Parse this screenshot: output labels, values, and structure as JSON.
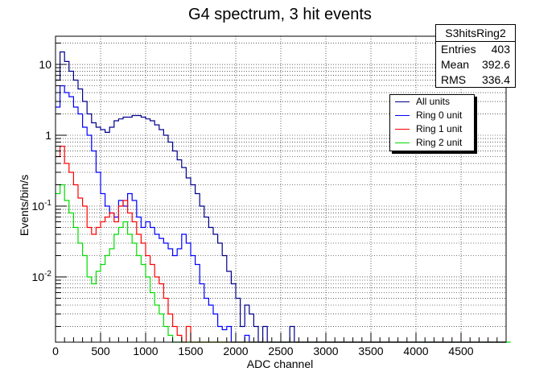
{
  "chart_data": {
    "type": "line",
    "title": "G4 spectrum, 3 hit events",
    "xlabel": "ADC channel",
    "ylabel": "Events/bin/s",
    "xlim": [
      0,
      5000
    ],
    "ylim": [
      0.0012,
      25
    ],
    "yscale": "log",
    "grid": true,
    "legend_position": "top-right",
    "x_ticks": [
      0,
      500,
      1000,
      1500,
      2000,
      2500,
      3000,
      3500,
      4000,
      4500
    ],
    "y_ticks": [
      {
        "value": 0.01,
        "label": "10^-2"
      },
      {
        "value": 0.1,
        "label": "10^-1"
      },
      {
        "value": 1,
        "label": "1"
      },
      {
        "value": 10,
        "label": "10"
      }
    ],
    "bin_width": 50,
    "series": [
      {
        "name": "All units",
        "color": "#00008b",
        "values": [
          6,
          15,
          11,
          8,
          6,
          4.5,
          3,
          2,
          1.5,
          1.3,
          1.2,
          1.1,
          1.3,
          1.6,
          1.7,
          1.8,
          1.8,
          1.9,
          1.9,
          1.8,
          1.7,
          1.6,
          1.4,
          1.2,
          1.0,
          0.8,
          0.6,
          0.45,
          0.35,
          0.25,
          0.2,
          0.15,
          0.1,
          0.07,
          0.05,
          0.04,
          0.03,
          0.02,
          0.012,
          0.008,
          0.005,
          0.002,
          0.004,
          0.003,
          0.002,
          0.001,
          0.002,
          0.001,
          0.0012,
          0.001,
          0.0012,
          0.001,
          0.002,
          0.001,
          0.001,
          0.001,
          0.001,
          0.001,
          0.001,
          0.001,
          0.001,
          0.001,
          0.001,
          0.001,
          0.001,
          0.001,
          0.001,
          0.001,
          0.001,
          0.001,
          0.001,
          0.001,
          0.001,
          0.001,
          0.001,
          0.001,
          0.001,
          0.001,
          0.001,
          0.001,
          0.001,
          0.001,
          0.001,
          0.001,
          0.001,
          0.001,
          0.001,
          0.001,
          0.001,
          0.001,
          0.001,
          0.001,
          0.001,
          0.001,
          0.001,
          0.001,
          0.001,
          0.001,
          0.001,
          0.001
        ]
      },
      {
        "name": "Ring 0 unit",
        "color": "#0000ff",
        "values": [
          2.5,
          5,
          4,
          3.5,
          2.5,
          2,
          1.3,
          1.0,
          0.6,
          0.3,
          0.15,
          0.1,
          0.08,
          0.07,
          0.12,
          0.1,
          0.15,
          0.12,
          0.07,
          0.05,
          0.06,
          0.05,
          0.04,
          0.035,
          0.03,
          0.025,
          0.02,
          0.025,
          0.04,
          0.03,
          0.02,
          0.015,
          0.008,
          0.005,
          0.004,
          0.003,
          0.002,
          0.0018,
          0.002,
          0.001,
          0.001,
          0.001,
          0.0015,
          0.001,
          0.001,
          0.001,
          0.001,
          0.001,
          0.001,
          0.001,
          0.001,
          0.001,
          0.001,
          0.001,
          0.001,
          0.001,
          0.001,
          0.001,
          0.001,
          0.001,
          0.001,
          0.001,
          0.001,
          0.001,
          0.001,
          0.001,
          0.001,
          0.001,
          0.001,
          0.001,
          0.001,
          0.001,
          0.001,
          0.001,
          0.001,
          0.001,
          0.001,
          0.001,
          0.001,
          0.001,
          0.001,
          0.001,
          0.001,
          0.001,
          0.001,
          0.001,
          0.001,
          0.001,
          0.001,
          0.001,
          0.001,
          0.001,
          0.001,
          0.001,
          0.001,
          0.001,
          0.001,
          0.001,
          0.001,
          0.001
        ]
      },
      {
        "name": "Ring 1 unit",
        "color": "#ff0000",
        "values": [
          0.5,
          0.7,
          0.4,
          0.3,
          0.2,
          0.13,
          0.1,
          0.05,
          0.04,
          0.05,
          0.06,
          0.07,
          0.08,
          0.06,
          0.1,
          0.12,
          0.08,
          0.06,
          0.04,
          0.03,
          0.02,
          0.015,
          0.01,
          0.008,
          0.005,
          0.003,
          0.002,
          0.0015,
          0.001,
          0.002,
          0.001,
          0.001,
          0.001,
          0.001,
          0.001,
          0.001,
          0.001,
          0.001,
          0.001,
          0.001,
          0.001,
          0.001,
          0.001,
          0.001,
          0.001,
          0.001,
          0.001,
          0.001,
          0.001,
          0.001,
          0.001,
          0.001,
          0.001,
          0.001,
          0.001,
          0.001,
          0.001,
          0.001,
          0.001,
          0.001,
          0.001,
          0.001,
          0.001,
          0.001,
          0.001,
          0.001,
          0.001,
          0.001,
          0.001,
          0.001,
          0.001,
          0.001,
          0.001,
          0.001,
          0.001,
          0.001,
          0.001,
          0.001,
          0.001,
          0.001,
          0.001,
          0.001,
          0.001,
          0.001,
          0.001,
          0.001,
          0.001,
          0.001,
          0.001,
          0.001,
          0.001,
          0.001,
          0.001,
          0.001,
          0.001,
          0.001,
          0.001,
          0.001,
          0.001,
          0.001
        ]
      },
      {
        "name": "Ring 2 unit",
        "color": "#00dd00",
        "values": [
          0.15,
          0.2,
          0.12,
          0.08,
          0.05,
          0.03,
          0.02,
          0.01,
          0.008,
          0.012,
          0.015,
          0.02,
          0.025,
          0.04,
          0.05,
          0.06,
          0.04,
          0.03,
          0.02,
          0.015,
          0.01,
          0.006,
          0.004,
          0.003,
          0.002,
          0.0015,
          0.001,
          0.0012,
          0.001,
          0.001,
          0.001,
          0.001,
          0.001,
          0.001,
          0.001,
          0.001,
          0.001,
          0.001,
          0.001,
          0.001,
          0.001,
          0.001,
          0.001,
          0.001,
          0.001,
          0.001,
          0.001,
          0.001,
          0.001,
          0.001,
          0.001,
          0.001,
          0.001,
          0.001,
          0.001,
          0.001,
          0.001,
          0.001,
          0.001,
          0.001,
          0.001,
          0.001,
          0.001,
          0.001,
          0.001,
          0.001,
          0.001,
          0.001,
          0.001,
          0.001,
          0.001,
          0.001,
          0.001,
          0.001,
          0.001,
          0.001,
          0.001,
          0.001,
          0.001,
          0.001,
          0.001,
          0.001,
          0.001,
          0.001,
          0.001,
          0.001,
          0.001,
          0.001,
          0.001,
          0.001,
          0.001,
          0.001,
          0.001,
          0.001,
          0.001,
          0.001,
          0.001,
          0.001,
          0.001,
          0.001,
          0.001
        ]
      }
    ]
  },
  "stats_box": {
    "name": "S3hitsRing2",
    "rows": [
      {
        "label": "Entries",
        "value": "403"
      },
      {
        "label": "Mean",
        "value": "392.6"
      },
      {
        "label": "RMS",
        "value": "336.4"
      }
    ]
  }
}
